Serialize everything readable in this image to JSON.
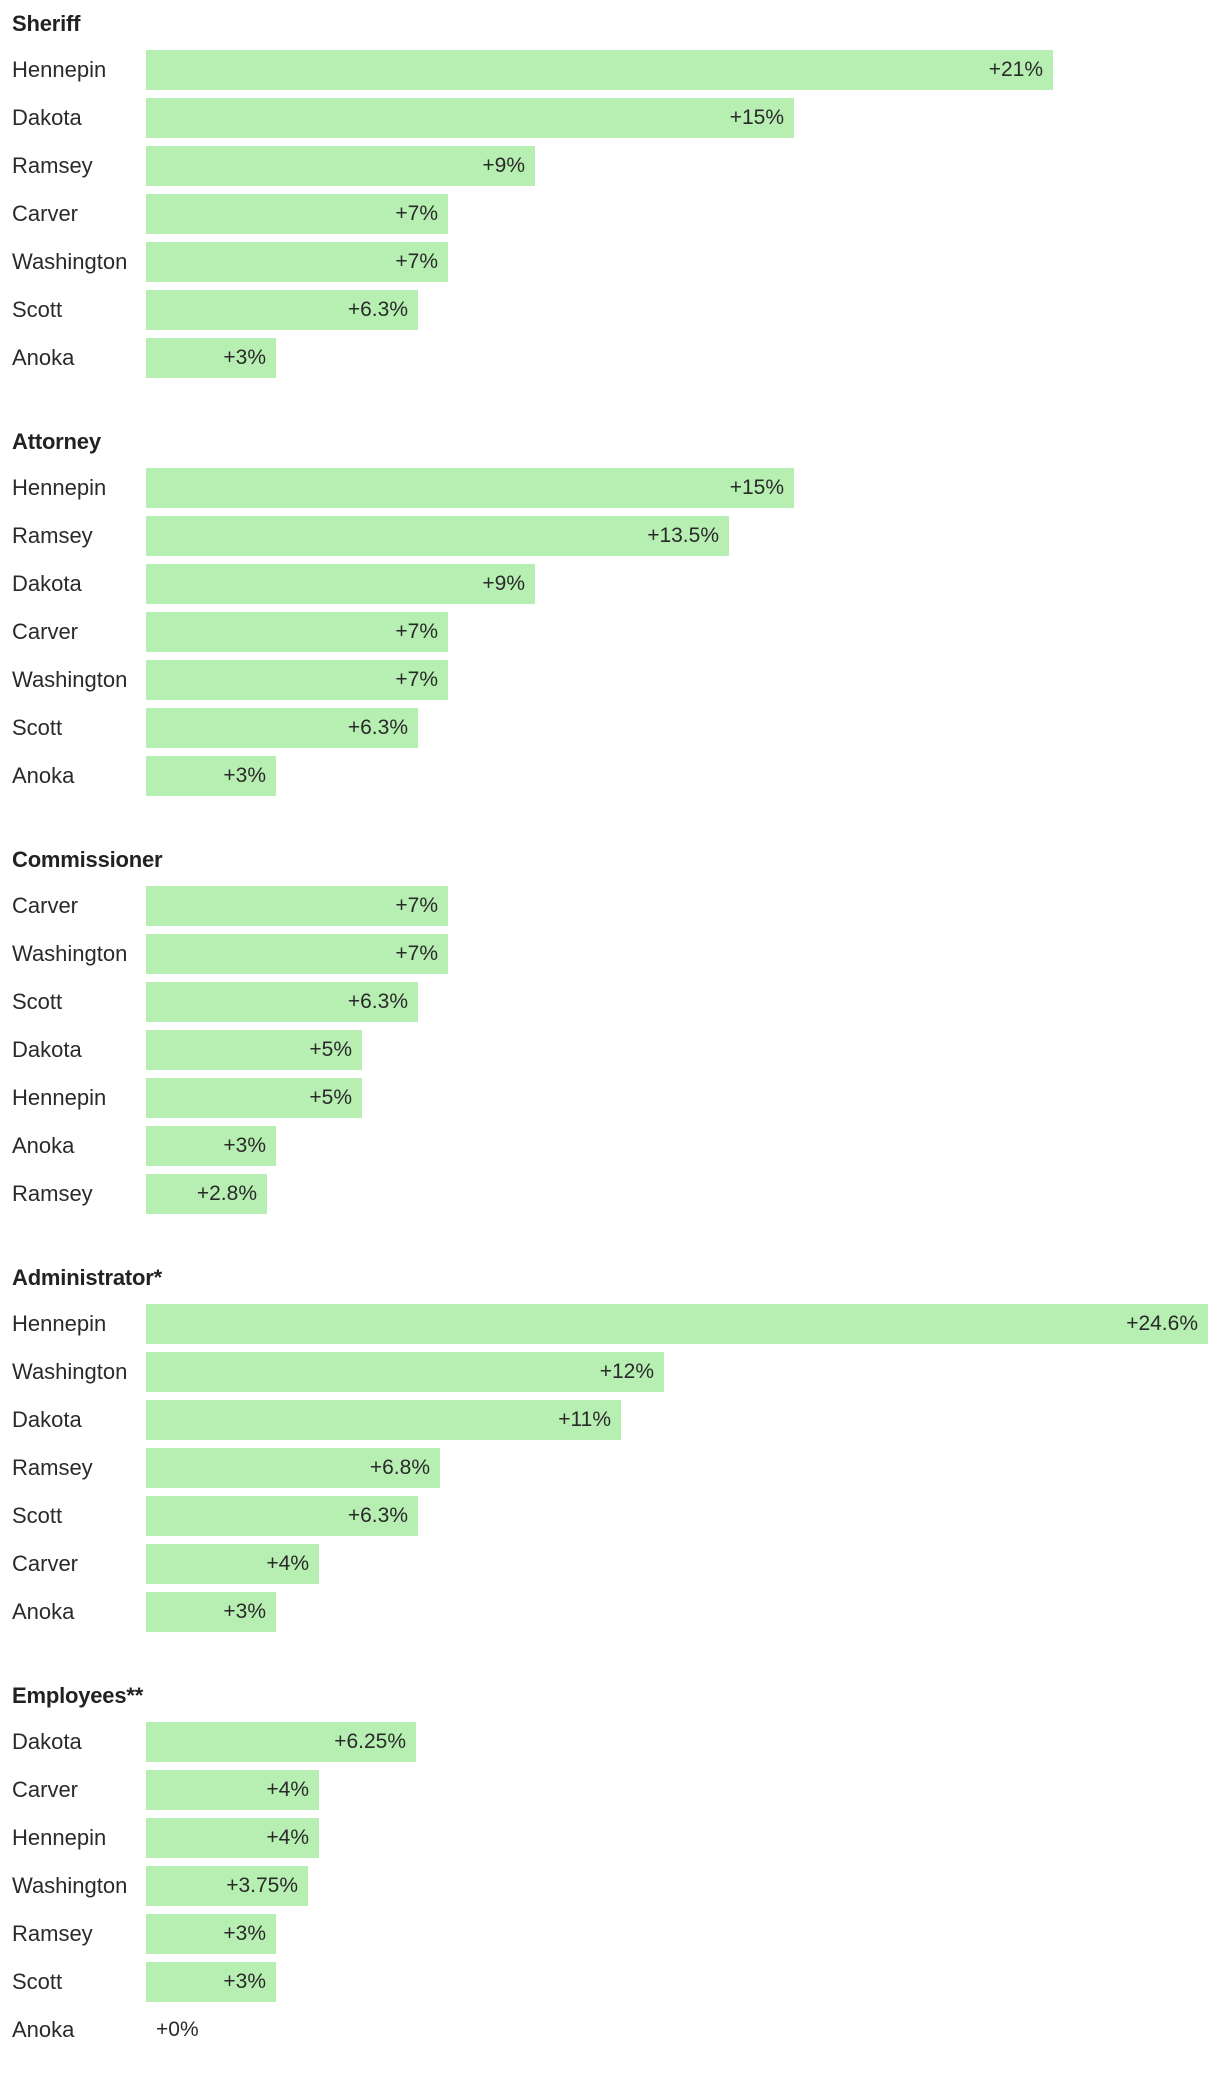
{
  "colors": {
    "bar": "#b7efb2",
    "text": "#222222"
  },
  "chart_data": [
    {
      "type": "bar",
      "orientation": "horizontal",
      "title": "Sheriff",
      "categories": [
        "Hennepin",
        "Dakota",
        "Ramsey",
        "Carver",
        "Washington",
        "Scott",
        "Anoka"
      ],
      "values": [
        21,
        15,
        9,
        7,
        7,
        6.3,
        3
      ],
      "value_labels": [
        "+21%",
        "+15%",
        "+9%",
        "+7%",
        "+7%",
        "+6.3%",
        "+3%"
      ],
      "xlim": [
        0,
        24.6
      ],
      "grid": false
    },
    {
      "type": "bar",
      "orientation": "horizontal",
      "title": "Attorney",
      "categories": [
        "Hennepin",
        "Ramsey",
        "Dakota",
        "Carver",
        "Washington",
        "Scott",
        "Anoka"
      ],
      "values": [
        15,
        13.5,
        9,
        7,
        7,
        6.3,
        3
      ],
      "value_labels": [
        "+15%",
        "+13.5%",
        "+9%",
        "+7%",
        "+7%",
        "+6.3%",
        "+3%"
      ],
      "xlim": [
        0,
        24.6
      ],
      "grid": false
    },
    {
      "type": "bar",
      "orientation": "horizontal",
      "title": "Commissioner",
      "categories": [
        "Carver",
        "Washington",
        "Scott",
        "Dakota",
        "Hennepin",
        "Anoka",
        "Ramsey"
      ],
      "values": [
        7,
        7,
        6.3,
        5,
        5,
        3,
        2.8
      ],
      "value_labels": [
        "+7%",
        "+7%",
        "+6.3%",
        "+5%",
        "+5%",
        "+3%",
        "+2.8%"
      ],
      "xlim": [
        0,
        24.6
      ],
      "grid": false
    },
    {
      "type": "bar",
      "orientation": "horizontal",
      "title": "Administrator*",
      "categories": [
        "Hennepin",
        "Washington",
        "Dakota",
        "Ramsey",
        "Scott",
        "Carver",
        "Anoka"
      ],
      "values": [
        24.6,
        12,
        11,
        6.8,
        6.3,
        4,
        3
      ],
      "value_labels": [
        "+24.6%",
        "+12%",
        "+11%",
        "+6.8%",
        "+6.3%",
        "+4%",
        "+3%"
      ],
      "xlim": [
        0,
        24.6
      ],
      "grid": false
    },
    {
      "type": "bar",
      "orientation": "horizontal",
      "title": "Employees**",
      "categories": [
        "Dakota",
        "Carver",
        "Hennepin",
        "Washington",
        "Ramsey",
        "Scott",
        "Anoka"
      ],
      "values": [
        6.25,
        4,
        4,
        3.75,
        3,
        3,
        0
      ],
      "value_labels": [
        "+6.25%",
        "+4%",
        "+4%",
        "+3.75%",
        "+3%",
        "+3%",
        "+0%"
      ],
      "xlim": [
        0,
        24.6
      ],
      "grid": false
    }
  ]
}
